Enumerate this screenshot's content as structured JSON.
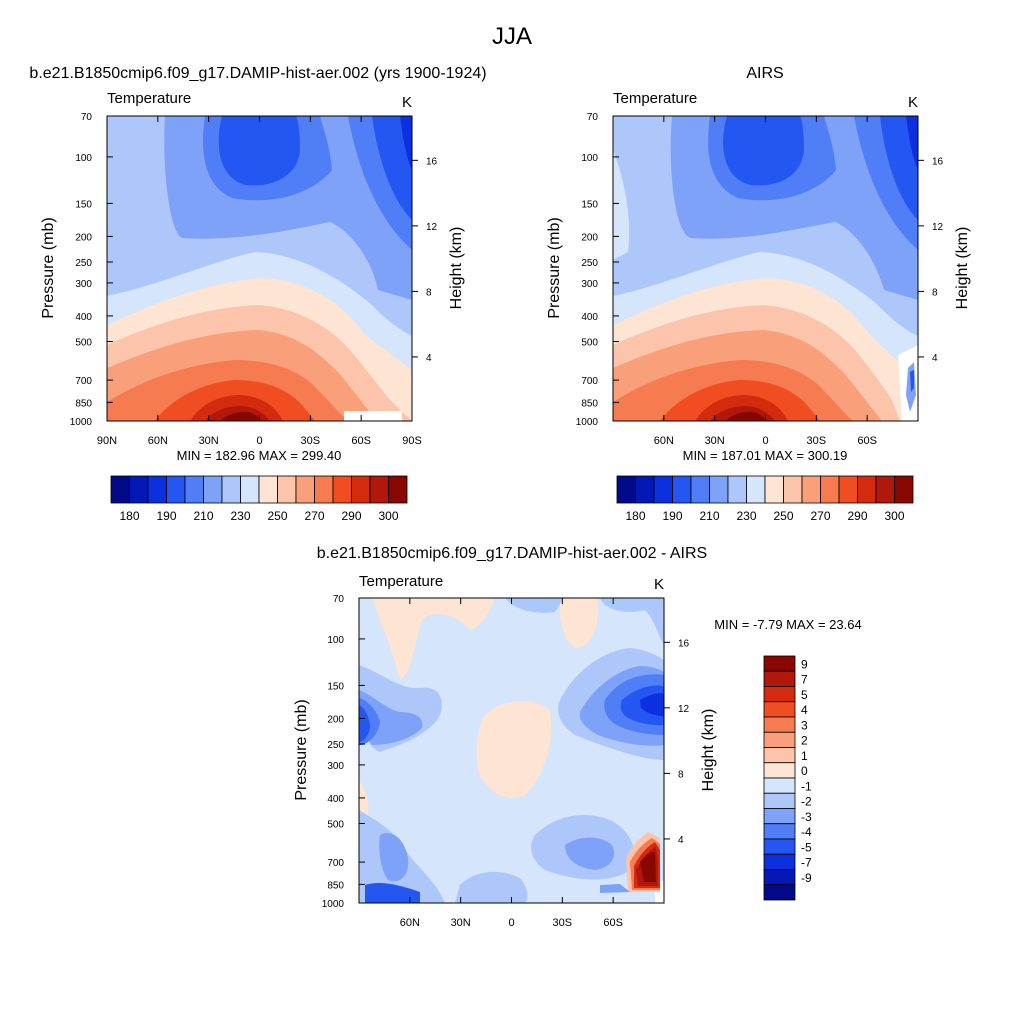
{
  "figure": {
    "title": "JJA"
  },
  "chart_data": [
    {
      "type": "heatmap",
      "title": "b.e21.B1850cmip6.f09_g17.DAMIP-hist-aer.002 (yrs 1900-1924)",
      "subtitle_left": "Temperature",
      "subtitle_right": "K",
      "ylabel": "Pressure (mb)",
      "ylabel_right": "Height (km)",
      "x_ticks": [
        "90N",
        "60N",
        "30N",
        "0",
        "30S",
        "60S",
        "90S"
      ],
      "y_ticks": [
        "70",
        "100",
        "150",
        "200",
        "250",
        "300",
        "400",
        "500",
        "700",
        "850",
        "1000"
      ],
      "y_right_ticks": [
        "16",
        "12",
        "8",
        "4"
      ],
      "stats": "MIN = 182.96  MAX = 299.40",
      "colorbar_labels": [
        "180",
        "190",
        "210",
        "230",
        "250",
        "270",
        "290",
        "300"
      ],
      "min": 182.96,
      "max": 299.4
    },
    {
      "type": "heatmap",
      "title": "AIRS",
      "subtitle_left": "Temperature",
      "subtitle_right": "K",
      "ylabel": "Pressure (mb)",
      "ylabel_right": "Height (km)",
      "x_ticks": [
        "60N",
        "30N",
        "0",
        "30S",
        "60S"
      ],
      "y_ticks": [
        "70",
        "100",
        "150",
        "200",
        "250",
        "300",
        "400",
        "500",
        "700",
        "850",
        "1000"
      ],
      "y_right_ticks": [
        "16",
        "12",
        "8",
        "4"
      ],
      "stats": "MIN = 187.01  MAX = 300.19",
      "colorbar_labels": [
        "180",
        "190",
        "210",
        "230",
        "250",
        "270",
        "290",
        "300"
      ],
      "min": 187.01,
      "max": 300.19
    },
    {
      "type": "heatmap",
      "title": "b.e21.B1850cmip6.f09_g17.DAMIP-hist-aer.002 - AIRS",
      "subtitle_left": "Temperature",
      "subtitle_right": "K",
      "ylabel": "Pressure (mb)",
      "ylabel_right": "Height (km)",
      "x_ticks": [
        "60N",
        "30N",
        "0",
        "30S",
        "60S"
      ],
      "y_ticks": [
        "70",
        "100",
        "150",
        "200",
        "250",
        "300",
        "400",
        "500",
        "700",
        "850",
        "1000"
      ],
      "y_right_ticks": [
        "16",
        "12",
        "8",
        "4"
      ],
      "stats": "MIN =  -7.79  MAX =  23.64",
      "colorbar_labels": [
        "9",
        "7",
        "5",
        "4",
        "3",
        "2",
        "1",
        "0",
        "-1",
        "-2",
        "-3",
        "-4",
        "-5",
        "-7",
        "-9"
      ],
      "min": -7.79,
      "max": 23.64
    }
  ],
  "palettes": {
    "temperature": [
      "#020a8a",
      "#0418b6",
      "#0c2fe0",
      "#2457f2",
      "#4f7ef6",
      "#7da2f7",
      "#aec7fb",
      "#d4e5fc",
      "#fde4d3",
      "#fcc4aa",
      "#f9a07b",
      "#f67b50",
      "#f04d22",
      "#d42b0f",
      "#b2170c",
      "#890702"
    ],
    "difference": [
      "#890702",
      "#b2170c",
      "#d42b0f",
      "#f04d22",
      "#f67b50",
      "#f9a07b",
      "#fcc4aa",
      "#fde4d3",
      "#d4e5fc",
      "#aec7fb",
      "#7da2f7",
      "#4f7ef6",
      "#2457f2",
      "#0c2fe0",
      "#0418b6",
      "#020a8a"
    ]
  }
}
